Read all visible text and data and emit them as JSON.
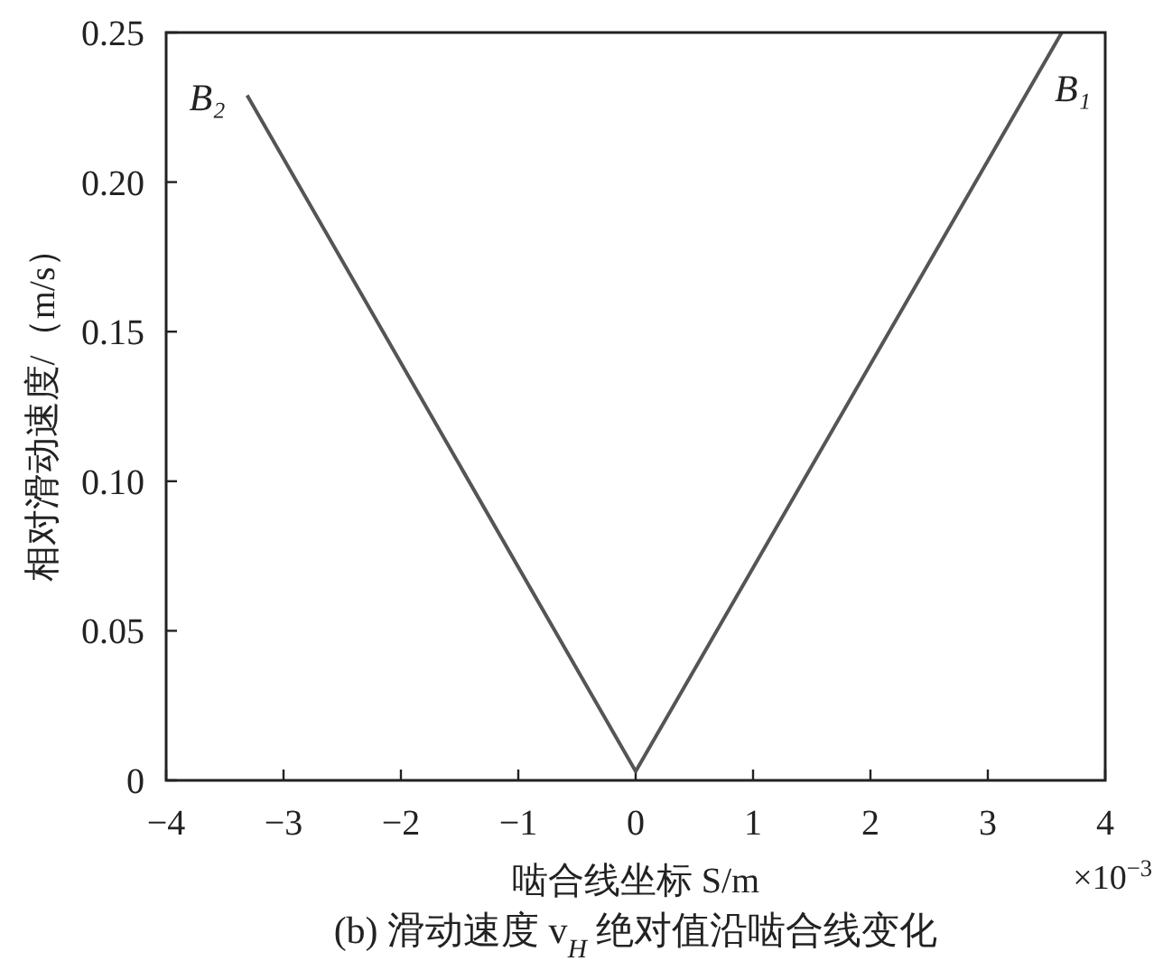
{
  "chart_data": {
    "type": "line",
    "title": "(b) 滑动速度 v$_{H}$ 绝对值沿啮合线变化",
    "xlabel": "啮合线坐标 S/m",
    "ylabel": "相对滑动速度/（m/s）",
    "x": [
      -3.31,
      0,
      3.63
    ],
    "series": [
      {
        "color": "#555555",
        "values": [
          0.229,
          0.003,
          0.25
        ]
      }
    ],
    "xlim": [
      -4,
      4
    ],
    "xticks": [
      -4,
      -3,
      -2,
      -1,
      0,
      1,
      2,
      3,
      4
    ],
    "ylim": [
      0,
      0.25
    ],
    "yticks": [
      {
        "value": 0,
        "label": "0"
      },
      {
        "value": 0.05,
        "label": "0.05"
      },
      {
        "value": 0.1,
        "label": "0.10"
      },
      {
        "value": 0.15,
        "label": "0.15"
      },
      {
        "value": 0.2,
        "label": "0.20"
      },
      {
        "value": 0.25,
        "label": "0.25"
      }
    ],
    "grid": false,
    "marker": "none",
    "line_style": "solid",
    "annotations": [
      {
        "text": "B₂",
        "x": -3.31,
        "y": 0.229
      },
      {
        "text": "B₁",
        "x": 3.63,
        "y": 0.25
      },
      "×10$^{−3}$"
    ]
  }
}
